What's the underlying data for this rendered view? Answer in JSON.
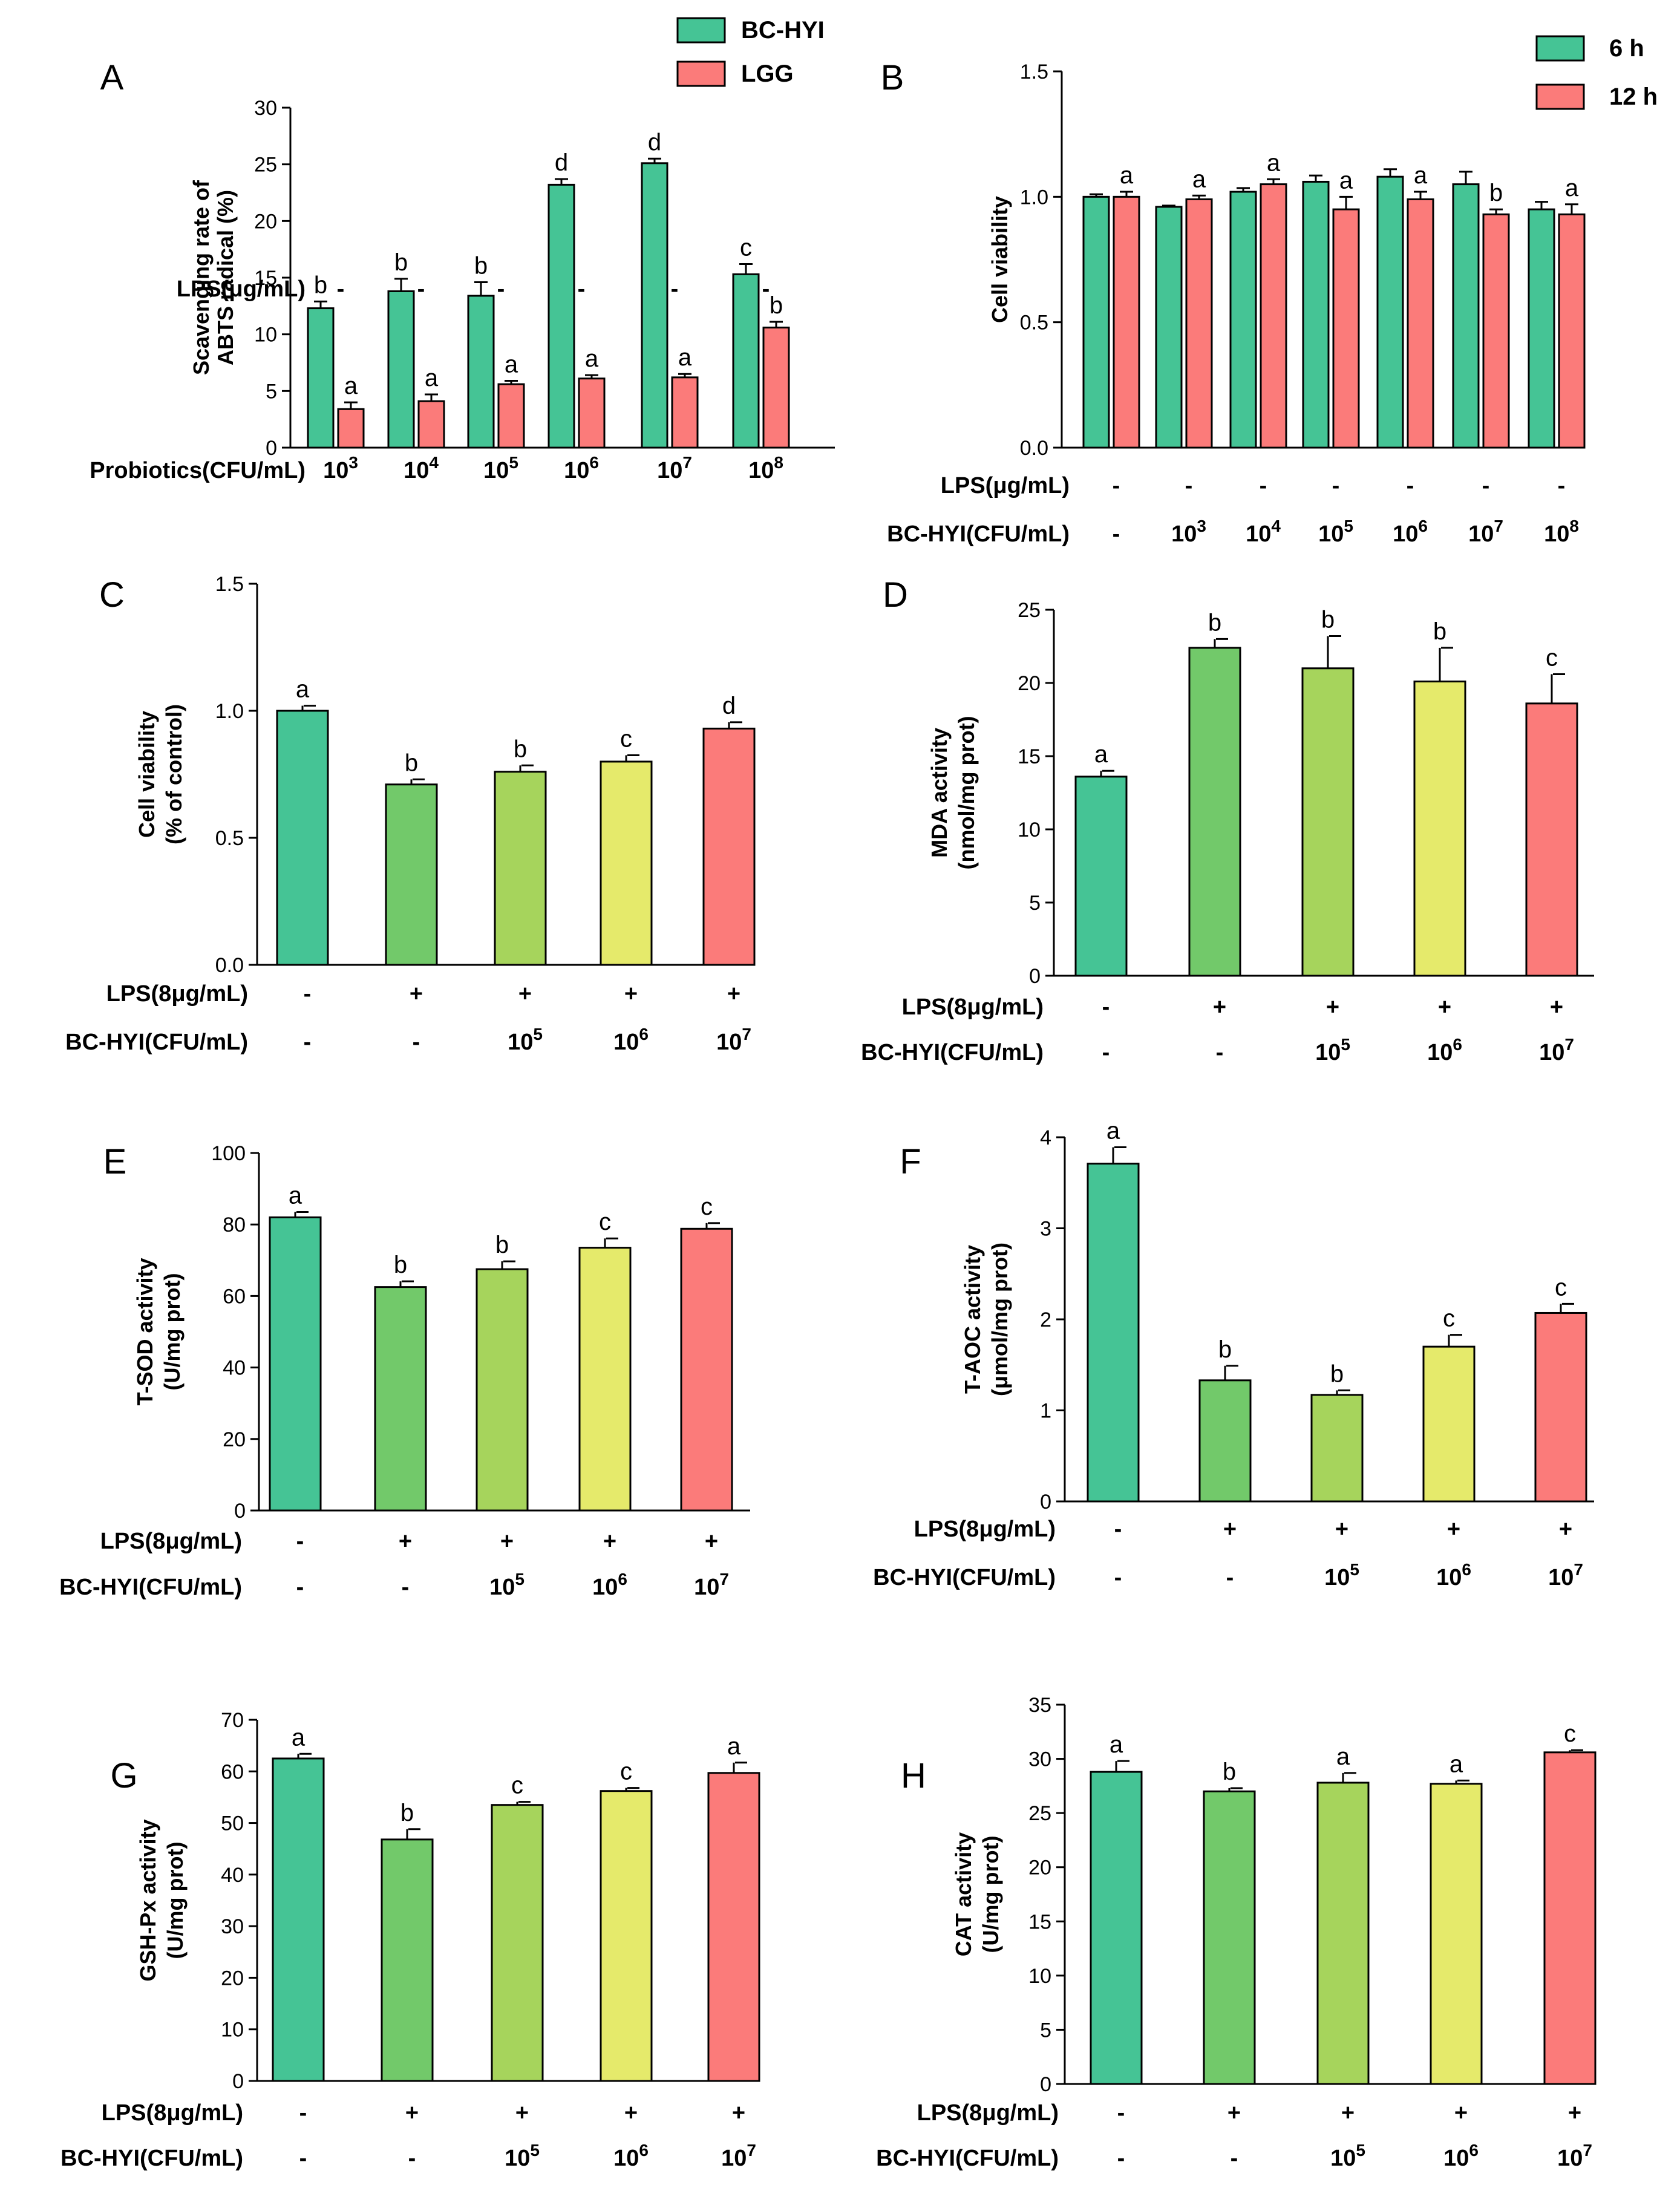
{
  "colors": {
    "green": "#45c495",
    "red": "#fb7b7a",
    "c_control": "#45c495",
    "c_lps": "#72c96a",
    "c_1e5": "#a6d45c",
    "c_1e6": "#e5ea6b",
    "c_1e7": "#fb7b7a"
  },
  "chart_data": [
    {
      "id": "A",
      "label": "A",
      "type": "bar",
      "ylabel": [
        "Scavenging rate of",
        "ABTS radical (%)"
      ],
      "ylim": [
        0,
        30
      ],
      "yticks": [
        "0",
        "5",
        "10",
        "15",
        "20",
        "25",
        "30"
      ],
      "legend": [
        "BC-HYI",
        "LGG"
      ],
      "series": [
        {
          "name": "BC-HYI",
          "color": "green",
          "values": [
            12.3,
            13.8,
            13.4,
            23.2,
            25.1,
            15.3
          ],
          "errors": [
            0.6,
            1.1,
            1.2,
            0.5,
            0.4,
            0.9
          ],
          "sig": [
            "b",
            "b",
            "b",
            "d",
            "d",
            "c"
          ]
        },
        {
          "name": "LGG",
          "color": "red",
          "values": [
            3.4,
            4.1,
            5.6,
            6.1,
            6.2,
            10.6
          ],
          "errors": [
            0.6,
            0.6,
            0.3,
            0.3,
            0.3,
            0.5
          ],
          "sig": [
            "a",
            "a",
            "a",
            "a",
            "a",
            "b"
          ]
        }
      ],
      "rows": [
        {
          "label": "LPS(μg/mL)",
          "values": [
            "-",
            "-",
            "-",
            "-",
            "-",
            "-"
          ]
        },
        {
          "label": "Probiotics(CFU/mL)",
          "values": [
            "10^3",
            "10^4",
            "10^5",
            "10^6",
            "10^7",
            "10^8"
          ]
        }
      ]
    },
    {
      "id": "B",
      "label": "B",
      "type": "bar",
      "ylabel": [
        "Cell viability"
      ],
      "ylim": [
        0,
        1.5
      ],
      "yticks": [
        "0.0",
        "0.5",
        "1.0",
        "1.5"
      ],
      "legend": [
        "6 h",
        "12 h"
      ],
      "series": [
        {
          "name": "6 h",
          "color": "green",
          "values": [
            1.0,
            0.96,
            1.02,
            1.06,
            1.08,
            1.05,
            0.95
          ],
          "errors": [
            0.01,
            0.005,
            0.015,
            0.025,
            0.03,
            0.05,
            0.03
          ],
          "sig": [
            "",
            "",
            "",
            "",
            "",
            "",
            ""
          ]
        },
        {
          "name": "12 h",
          "color": "red",
          "values": [
            1.0,
            0.99,
            1.05,
            0.95,
            0.99,
            0.93,
            0.93
          ],
          "errors": [
            0.02,
            0.015,
            0.02,
            0.05,
            0.03,
            0.02,
            0.04
          ],
          "sig": [
            "a",
            "a",
            "a",
            "a",
            "a",
            "b",
            "a"
          ]
        }
      ],
      "rows": [
        {
          "label": "LPS(μg/mL)",
          "values": [
            "-",
            "-",
            "-",
            "-",
            "-",
            "-",
            "-"
          ]
        },
        {
          "label": "BC-HYI(CFU/mL)",
          "values": [
            "-",
            "10^3",
            "10^4",
            "10^5",
            "10^6",
            "10^7",
            "10^8"
          ]
        }
      ]
    },
    {
      "id": "C",
      "label": "C",
      "type": "bar",
      "ylabel": [
        "Cell viability",
        "(% of  control)"
      ],
      "ylim": [
        0,
        1.5
      ],
      "yticks": [
        "0.0",
        "0.5",
        "1.0",
        "1.5"
      ],
      "values": [
        1.0,
        0.71,
        0.76,
        0.8,
        0.93
      ],
      "errors": [
        0.02,
        0.02,
        0.025,
        0.025,
        0.025
      ],
      "sig": [
        "a",
        "b",
        "b",
        "c",
        "d"
      ],
      "colors": [
        "c_control",
        "c_lps",
        "c_1e5",
        "c_1e6",
        "c_1e7"
      ],
      "rows": [
        {
          "label": "LPS(8μg/mL)",
          "values": [
            "-",
            "+",
            "+",
            "+",
            "+"
          ]
        },
        {
          "label": "BC-HYI(CFU/mL)",
          "values": [
            "-",
            "-",
            "10^5",
            "10^6",
            "10^7"
          ]
        }
      ]
    },
    {
      "id": "D",
      "label": "D",
      "type": "bar",
      "ylabel": [
        "MDA activity",
        "(nmol/mg prot)"
      ],
      "ylim": [
        0,
        25
      ],
      "yticks": [
        "0",
        "5",
        "10",
        "15",
        "20",
        "25"
      ],
      "values": [
        13.6,
        22.4,
        21.0,
        20.1,
        18.6
      ],
      "errors": [
        0.4,
        0.6,
        2.2,
        2.3,
        2.0
      ],
      "sig": [
        "a",
        "b",
        "b",
        "b",
        "c"
      ],
      "colors": [
        "c_control",
        "c_lps",
        "c_1e5",
        "c_1e6",
        "c_1e7"
      ],
      "rows": [
        {
          "label": "LPS(8μg/mL)",
          "values": [
            "-",
            "+",
            "+",
            "+",
            "+"
          ]
        },
        {
          "label": "BC-HYI(CFU/mL)",
          "values": [
            "-",
            "-",
            "10^5",
            "10^6",
            "10^7"
          ]
        }
      ]
    },
    {
      "id": "E",
      "label": "E",
      "type": "bar",
      "ylabel": [
        "T-SOD activity",
        "(U/mg prot)"
      ],
      "ylim": [
        0,
        100
      ],
      "yticks": [
        "0",
        "20",
        "40",
        "60",
        "80",
        "100"
      ],
      "values": [
        82.0,
        62.5,
        67.5,
        73.5,
        78.8
      ],
      "errors": [
        1.5,
        1.6,
        2.2,
        2.6,
        1.6
      ],
      "sig": [
        "a",
        "b",
        "b",
        "c",
        "c"
      ],
      "colors": [
        "c_control",
        "c_lps",
        "c_1e5",
        "c_1e6",
        "c_1e7"
      ],
      "rows": [
        {
          "label": "LPS(8μg/mL)",
          "values": [
            "-",
            "+",
            "+",
            "+",
            "+"
          ]
        },
        {
          "label": "BC-HYI(CFU/mL)",
          "values": [
            "-",
            "-",
            "10^5",
            "10^6",
            "10^7"
          ]
        }
      ]
    },
    {
      "id": "F",
      "label": "F",
      "type": "bar",
      "ylabel": [
        "T-AOC activity",
        "(μmol/mg prot)"
      ],
      "ylim": [
        0,
        4
      ],
      "yticks": [
        "0",
        "1",
        "2",
        "3",
        "4"
      ],
      "values": [
        3.71,
        1.33,
        1.17,
        1.7,
        2.07
      ],
      "errors": [
        0.18,
        0.16,
        0.05,
        0.13,
        0.1
      ],
      "sig": [
        "a",
        "b",
        "b",
        "c",
        "c"
      ],
      "colors": [
        "c_control",
        "c_lps",
        "c_1e5",
        "c_1e6",
        "c_1e7"
      ],
      "rows": [
        {
          "label": "LPS(8μg/mL)",
          "values": [
            "-",
            "+",
            "+",
            "+",
            "+"
          ]
        },
        {
          "label": "BC-HYI(CFU/mL)",
          "values": [
            "-",
            "-",
            "10^5",
            "10^6",
            "10^7"
          ]
        }
      ]
    },
    {
      "id": "G",
      "label": "G",
      "type": "bar",
      "ylabel": [
        "GSH-Px activity",
        "(U/mg prot)"
      ],
      "ylim": [
        0,
        70
      ],
      "yticks": [
        "0",
        "10",
        "20",
        "30",
        "40",
        "50",
        "60",
        "70"
      ],
      "values": [
        62.5,
        46.8,
        53.5,
        56.2,
        59.7
      ],
      "errors": [
        0.9,
        2.0,
        0.6,
        0.6,
        2.0
      ],
      "sig": [
        "a",
        "b",
        "c",
        "c",
        "a"
      ],
      "colors": [
        "c_control",
        "c_lps",
        "c_1e5",
        "c_1e6",
        "c_1e7"
      ],
      "rows": [
        {
          "label": "LPS(8μg/mL)",
          "values": [
            "-",
            "+",
            "+",
            "+",
            "+"
          ]
        },
        {
          "label": "BC-HYI(CFU/mL)",
          "values": [
            "-",
            "-",
            "10^5",
            "10^6",
            "10^7"
          ]
        }
      ]
    },
    {
      "id": "H",
      "label": "H",
      "type": "bar",
      "ylabel": [
        "CAT activity",
        "(U/mg prot)"
      ],
      "ylim": [
        0,
        35
      ],
      "yticks": [
        "0",
        "5",
        "10",
        "15",
        "20",
        "25",
        "30",
        "35"
      ],
      "values": [
        28.8,
        27.0,
        27.8,
        27.7,
        30.6
      ],
      "errors": [
        1.0,
        0.3,
        0.9,
        0.3,
        0.2
      ],
      "sig": [
        "a",
        "b",
        "a",
        "a",
        "c"
      ],
      "colors": [
        "c_control",
        "c_lps",
        "c_1e5",
        "c_1e6",
        "c_1e7"
      ],
      "rows": [
        {
          "label": "LPS(8μg/mL)",
          "values": [
            "-",
            "+",
            "+",
            "+",
            "+"
          ]
        },
        {
          "label": "BC-HYI(CFU/mL)",
          "values": [
            "-",
            "-",
            "10^5",
            "10^6",
            "10^7"
          ]
        }
      ]
    }
  ]
}
